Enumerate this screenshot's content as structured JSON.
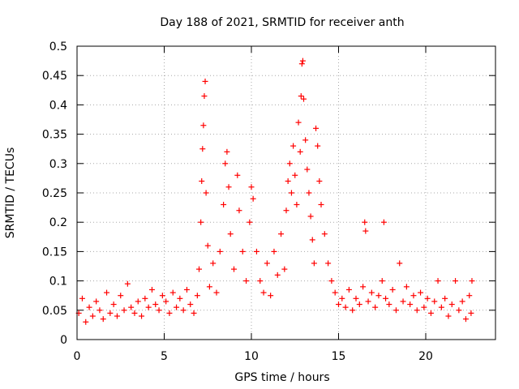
{
  "chart_data": {
    "type": "scatter",
    "title": "Day 188 of 2021, SRMTID for receiver anth",
    "xlabel": "GPS time / hours",
    "ylabel": "SRMTID / TECUs",
    "xlim": [
      0,
      24
    ],
    "ylim": [
      0,
      0.5
    ],
    "x_ticks": [
      0,
      5,
      10,
      15,
      20
    ],
    "y_ticks": [
      0,
      0.05,
      0.1,
      0.15,
      0.2,
      0.25,
      0.3,
      0.35,
      0.4,
      0.45,
      0.5
    ],
    "x_tick_labels": [
      "0",
      "5",
      "10",
      "15",
      "20"
    ],
    "y_tick_labels": [
      "0",
      "0.05",
      "0.1",
      "0.15",
      "0.2",
      "0.25",
      "0.3",
      "0.35",
      "0.4",
      "0.45",
      "0.5"
    ],
    "grid": true,
    "marker": "+",
    "series": [
      {
        "name": "SRMTID",
        "color": "#ff0000",
        "points": [
          [
            0.1,
            0.045
          ],
          [
            0.3,
            0.07
          ],
          [
            0.5,
            0.03
          ],
          [
            0.7,
            0.055
          ],
          [
            0.9,
            0.04
          ],
          [
            1.1,
            0.065
          ],
          [
            1.3,
            0.05
          ],
          [
            1.5,
            0.035
          ],
          [
            1.7,
            0.08
          ],
          [
            1.9,
            0.045
          ],
          [
            2.1,
            0.06
          ],
          [
            2.3,
            0.04
          ],
          [
            2.5,
            0.075
          ],
          [
            2.7,
            0.05
          ],
          [
            2.9,
            0.095
          ],
          [
            3.1,
            0.055
          ],
          [
            3.3,
            0.045
          ],
          [
            3.5,
            0.065
          ],
          [
            3.7,
            0.04
          ],
          [
            3.9,
            0.07
          ],
          [
            4.1,
            0.055
          ],
          [
            4.3,
            0.085
          ],
          [
            4.5,
            0.06
          ],
          [
            4.7,
            0.05
          ],
          [
            4.9,
            0.075
          ],
          [
            5.1,
            0.065
          ],
          [
            5.3,
            0.045
          ],
          [
            5.5,
            0.08
          ],
          [
            5.7,
            0.055
          ],
          [
            5.9,
            0.07
          ],
          [
            6.1,
            0.05
          ],
          [
            6.3,
            0.085
          ],
          [
            6.5,
            0.06
          ],
          [
            6.7,
            0.045
          ],
          [
            6.9,
            0.075
          ],
          [
            7.0,
            0.12
          ],
          [
            7.1,
            0.2
          ],
          [
            7.15,
            0.27
          ],
          [
            7.2,
            0.325
          ],
          [
            7.25,
            0.365
          ],
          [
            7.3,
            0.415
          ],
          [
            7.35,
            0.44
          ],
          [
            7.4,
            0.25
          ],
          [
            7.5,
            0.16
          ],
          [
            7.6,
            0.09
          ],
          [
            7.8,
            0.13
          ],
          [
            8.0,
            0.08
          ],
          [
            8.2,
            0.15
          ],
          [
            8.4,
            0.23
          ],
          [
            8.5,
            0.3
          ],
          [
            8.6,
            0.32
          ],
          [
            8.7,
            0.26
          ],
          [
            8.8,
            0.18
          ],
          [
            9.0,
            0.12
          ],
          [
            9.2,
            0.28
          ],
          [
            9.3,
            0.22
          ],
          [
            9.5,
            0.15
          ],
          [
            9.7,
            0.1
          ],
          [
            9.9,
            0.2
          ],
          [
            10.0,
            0.26
          ],
          [
            10.1,
            0.24
          ],
          [
            10.3,
            0.15
          ],
          [
            10.5,
            0.1
          ],
          [
            10.7,
            0.08
          ],
          [
            10.9,
            0.13
          ],
          [
            11.1,
            0.075
          ],
          [
            11.3,
            0.15
          ],
          [
            11.5,
            0.11
          ],
          [
            11.7,
            0.18
          ],
          [
            11.9,
            0.12
          ],
          [
            12.0,
            0.22
          ],
          [
            12.1,
            0.27
          ],
          [
            12.2,
            0.3
          ],
          [
            12.3,
            0.25
          ],
          [
            12.4,
            0.33
          ],
          [
            12.5,
            0.28
          ],
          [
            12.6,
            0.23
          ],
          [
            12.7,
            0.37
          ],
          [
            12.8,
            0.32
          ],
          [
            12.85,
            0.415
          ],
          [
            12.9,
            0.47
          ],
          [
            12.95,
            0.475
          ],
          [
            13.0,
            0.41
          ],
          [
            13.1,
            0.34
          ],
          [
            13.2,
            0.29
          ],
          [
            13.3,
            0.25
          ],
          [
            13.4,
            0.21
          ],
          [
            13.5,
            0.17
          ],
          [
            13.6,
            0.13
          ],
          [
            13.7,
            0.36
          ],
          [
            13.8,
            0.33
          ],
          [
            13.9,
            0.27
          ],
          [
            14.0,
            0.23
          ],
          [
            14.2,
            0.18
          ],
          [
            14.4,
            0.13
          ],
          [
            14.6,
            0.1
          ],
          [
            14.8,
            0.08
          ],
          [
            15.0,
            0.06
          ],
          [
            15.2,
            0.07
          ],
          [
            15.4,
            0.055
          ],
          [
            15.6,
            0.085
          ],
          [
            15.8,
            0.05
          ],
          [
            16.0,
            0.07
          ],
          [
            16.2,
            0.06
          ],
          [
            16.4,
            0.09
          ],
          [
            16.5,
            0.2
          ],
          [
            16.55,
            0.185
          ],
          [
            16.7,
            0.065
          ],
          [
            16.9,
            0.08
          ],
          [
            17.1,
            0.055
          ],
          [
            17.3,
            0.075
          ],
          [
            17.5,
            0.1
          ],
          [
            17.6,
            0.2
          ],
          [
            17.7,
            0.07
          ],
          [
            17.9,
            0.06
          ],
          [
            18.1,
            0.085
          ],
          [
            18.3,
            0.05
          ],
          [
            18.5,
            0.13
          ],
          [
            18.7,
            0.065
          ],
          [
            18.9,
            0.09
          ],
          [
            19.1,
            0.06
          ],
          [
            19.3,
            0.075
          ],
          [
            19.5,
            0.05
          ],
          [
            19.7,
            0.08
          ],
          [
            19.9,
            0.055
          ],
          [
            20.1,
            0.07
          ],
          [
            20.3,
            0.045
          ],
          [
            20.5,
            0.065
          ],
          [
            20.7,
            0.1
          ],
          [
            20.9,
            0.055
          ],
          [
            21.1,
            0.07
          ],
          [
            21.3,
            0.04
          ],
          [
            21.5,
            0.06
          ],
          [
            21.7,
            0.1
          ],
          [
            21.9,
            0.05
          ],
          [
            22.1,
            0.065
          ],
          [
            22.3,
            0.035
          ],
          [
            22.5,
            0.075
          ],
          [
            22.6,
            0.045
          ],
          [
            22.65,
            0.1
          ]
        ]
      }
    ]
  }
}
